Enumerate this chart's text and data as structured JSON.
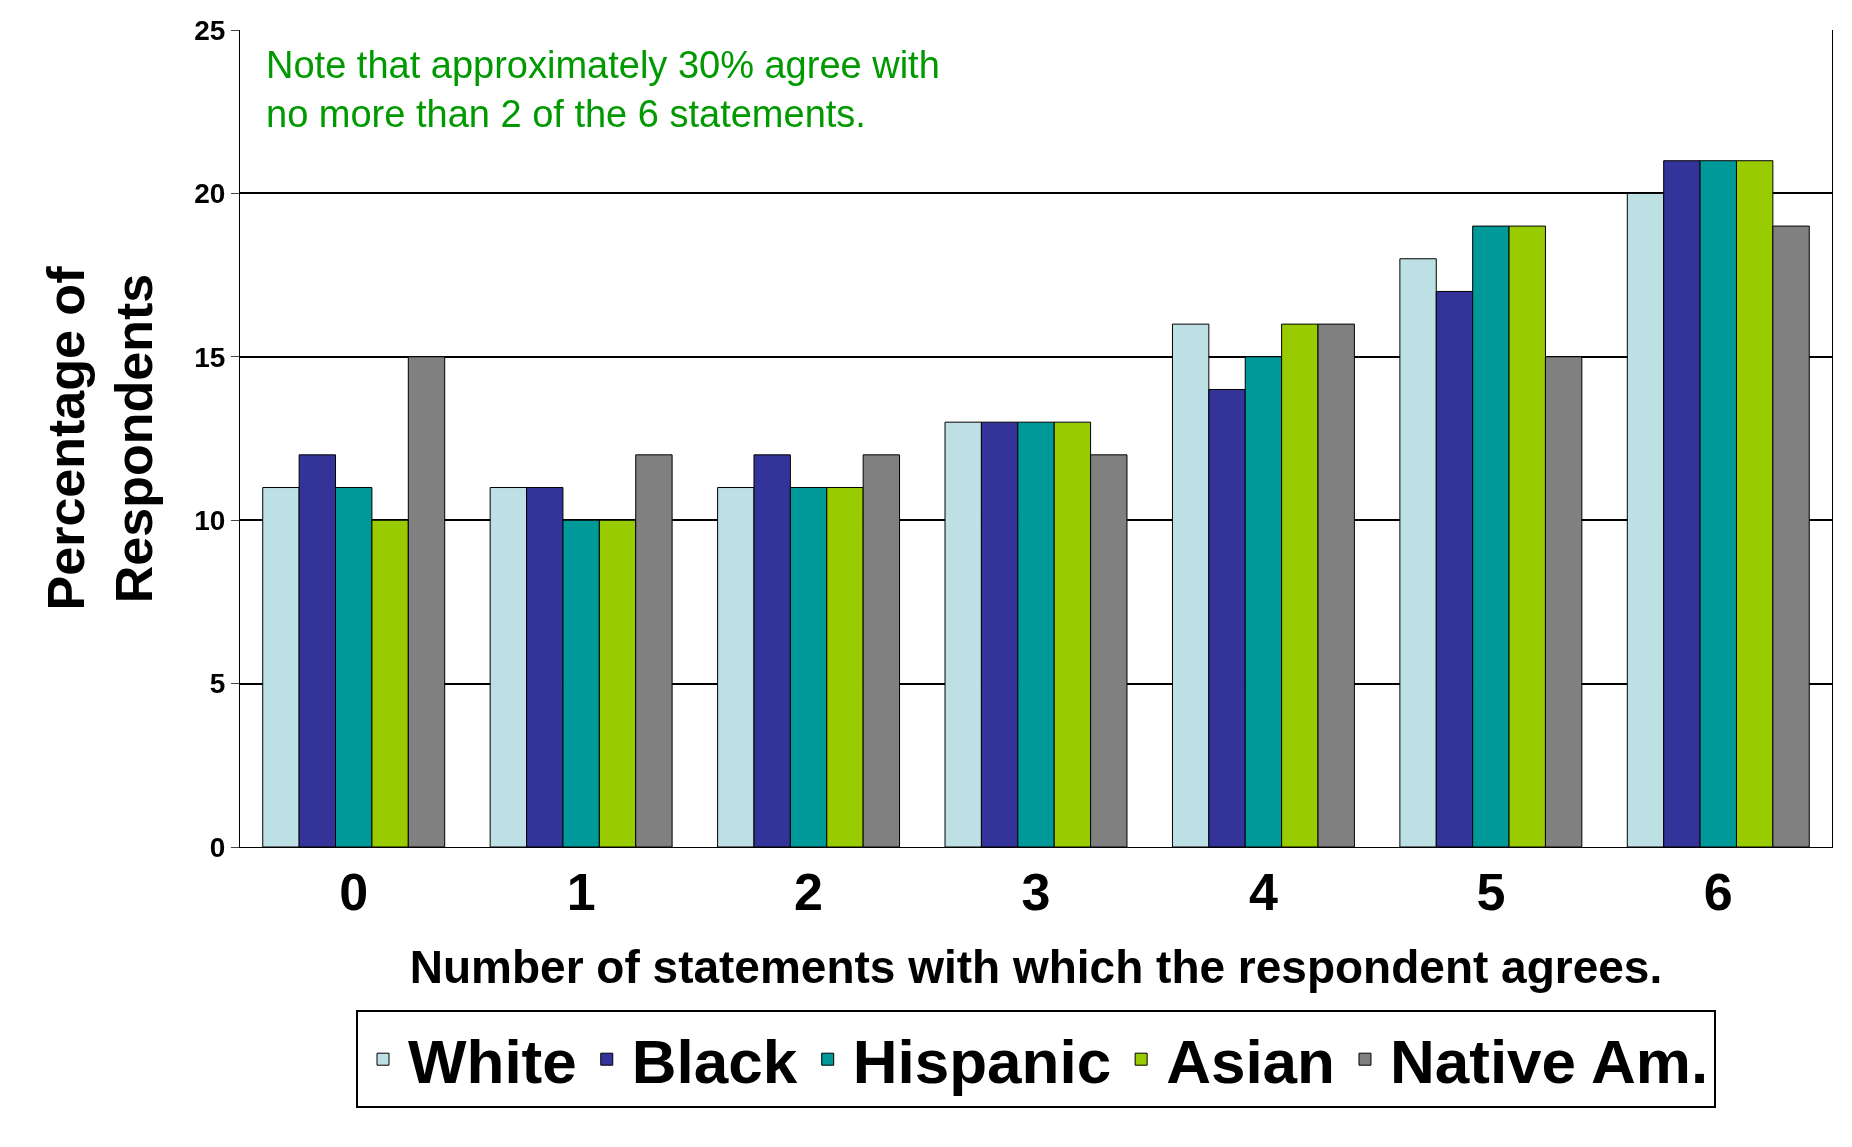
{
  "chart_data": {
    "type": "bar",
    "xlabel": "Number of statements with which the respondent agrees.",
    "ylabel": "Percentage of\nRespondents",
    "annotations": [
      "Note that approximately 30% agree with\nno more than 2 of the 6 statements."
    ],
    "categories": [
      "0",
      "1",
      "2",
      "3",
      "4",
      "5",
      "6"
    ],
    "series": [
      {
        "name": "White",
        "color": "#bde0e4",
        "values": [
          11,
          11,
          11,
          13,
          16,
          18,
          20
        ]
      },
      {
        "name": "Black",
        "color": "#333399",
        "values": [
          12,
          11,
          12,
          13,
          14,
          17,
          21
        ]
      },
      {
        "name": "Hispanic",
        "color": "#009999",
        "values": [
          11,
          10,
          11,
          13,
          15,
          19,
          21
        ]
      },
      {
        "name": "Asian",
        "color": "#99cc00",
        "values": [
          10,
          10,
          11,
          13,
          16,
          19,
          21
        ]
      },
      {
        "name": "Native Am.",
        "color": "#808080",
        "values": [
          15,
          12,
          12,
          12,
          16,
          15,
          19
        ]
      }
    ],
    "ylim": [
      0,
      25
    ],
    "yticks": [
      0,
      5,
      10,
      15,
      20,
      25
    ],
    "grid": "y",
    "legend": "bottom"
  }
}
